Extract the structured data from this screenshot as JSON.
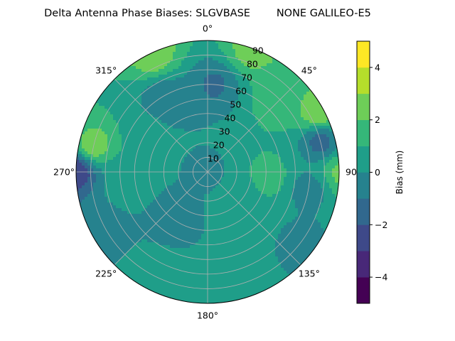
{
  "chart_data": {
    "type": "heatmap",
    "title": "Delta Antenna Phase Biases: SLGVBASE        NONE GALILEO-E5",
    "projection": "polar",
    "angular_direction": "clockwise",
    "zero_location": "top",
    "angular_ticks": [
      "0°",
      "45°",
      "90",
      "135°",
      "180°",
      "225°",
      "270°",
      "315°"
    ],
    "radial_ticks": [
      "10",
      "20",
      "30",
      "40",
      "50",
      "60",
      "70",
      "80",
      "90"
    ],
    "radial_range": [
      0,
      90
    ],
    "grid": true,
    "colorbar": {
      "label": "Bias (mm)",
      "range": [
        -5,
        5
      ],
      "ticks": [
        "−4",
        "−2",
        "0",
        "2",
        "4"
      ],
      "levels": [
        -5,
        -4.5,
        -4,
        -3.5,
        -3,
        -2.5,
        -2,
        -1.5,
        -1,
        -0.5,
        0,
        0.5,
        1,
        1.5,
        2,
        2.5,
        3,
        3.5,
        4,
        4.5,
        5
      ],
      "colors": [
        "#440154",
        "#482878",
        "#3e4989",
        "#31688e",
        "#26828e",
        "#1f9e89",
        "#35b779",
        "#6ece58",
        "#b5de2b",
        "#fde725"
      ]
    },
    "features": [
      {
        "azimuth": 283,
        "radius": 80,
        "value": 2.7
      },
      {
        "azimuth": 270,
        "radius": 90,
        "value": -3.0
      },
      {
        "azimuth": 20,
        "radius": 88,
        "value": 2.5
      },
      {
        "azimuth": 335,
        "radius": 88,
        "value": 2.8
      },
      {
        "azimuth": 62,
        "radius": 86,
        "value": 3.0
      },
      {
        "azimuth": 90,
        "radius": 92,
        "value": 2.4
      },
      {
        "azimuth": 75,
        "radius": 80,
        "value": -1.5
      },
      {
        "azimuth": 45,
        "radius": 68,
        "value": 1.5
      },
      {
        "azimuth": 5,
        "radius": 60,
        "value": -1.2
      },
      {
        "azimuth": 330,
        "radius": 58,
        "value": -1.0
      },
      {
        "azimuth": 300,
        "radius": 50,
        "value": 0.7
      },
      {
        "azimuth": 95,
        "radius": 42,
        "value": 1.6
      },
      {
        "azimuth": 125,
        "radius": 28,
        "value": 0.5
      },
      {
        "azimuth": 0,
        "radius": 0,
        "value": -0.3
      },
      {
        "azimuth": 210,
        "radius": 40,
        "value": -0.7
      },
      {
        "azimuth": 200,
        "radius": 78,
        "value": 1.0
      },
      {
        "azimuth": 160,
        "radius": 76,
        "value": 1.0
      },
      {
        "azimuth": 150,
        "radius": 48,
        "value": 0.9
      },
      {
        "azimuth": 245,
        "radius": 82,
        "value": -0.6
      },
      {
        "azimuth": 130,
        "radius": 80,
        "value": -0.6
      },
      {
        "azimuth": 100,
        "radius": 70,
        "value": -0.5
      },
      {
        "azimuth": 260,
        "radius": 60,
        "value": 0.5
      }
    ]
  }
}
